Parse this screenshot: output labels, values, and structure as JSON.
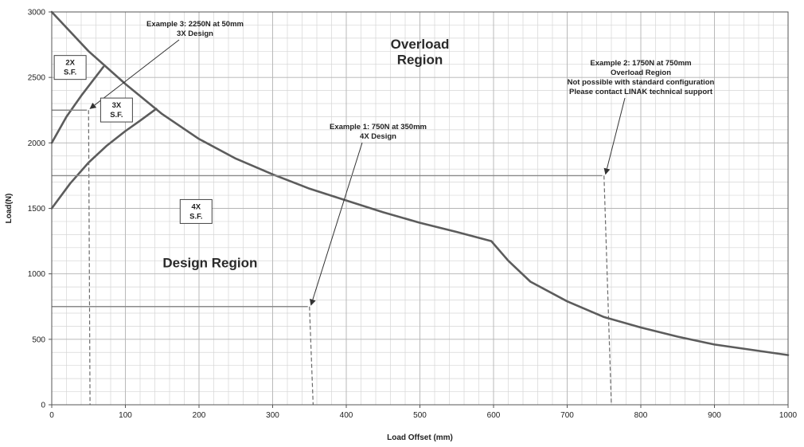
{
  "chart_data": {
    "type": "line",
    "title": "",
    "xlabel": "Load Offset (mm)",
    "ylabel": "Load(N)",
    "xlim": [
      0,
      1000
    ],
    "ylim": [
      0,
      3000
    ],
    "xticks": [
      0,
      100,
      200,
      300,
      400,
      500,
      600,
      700,
      800,
      900,
      1000
    ],
    "yticks": [
      0,
      500,
      1000,
      1500,
      2000,
      2500,
      3000
    ],
    "x_minor_step": 20,
    "y_minor_step": 100,
    "grid": true,
    "series": [
      {
        "role": "limit-curve",
        "x": [
          0,
          50,
          100,
          150,
          200,
          250,
          300,
          350,
          400,
          450,
          500,
          550,
          597,
          620,
          650,
          700,
          750,
          800,
          850,
          900,
          950,
          1000
        ],
        "y": [
          3000,
          2700,
          2450,
          2220,
          2030,
          1880,
          1760,
          1650,
          1560,
          1470,
          1390,
          1320,
          1250,
          1100,
          940,
          790,
          670,
          590,
          520,
          460,
          420,
          380
        ]
      },
      {
        "role": "2X S.F.",
        "x": [
          0,
          20,
          40,
          55,
          70
        ],
        "y": [
          2000,
          2200,
          2360,
          2470,
          2580
        ]
      },
      {
        "role": "3X / 4X S.F.",
        "x": [
          0,
          25,
          50,
          75,
          100,
          120,
          142
        ],
        "y": [
          1500,
          1690,
          1850,
          1980,
          2090,
          2170,
          2260
        ]
      }
    ],
    "examples": [
      {
        "load": 2250,
        "offset": 50,
        "label_lines": [
          "Example 3: 2250N at 50mm",
          "3X Design"
        ],
        "end_offset": 52
      },
      {
        "load": 750,
        "offset": 350,
        "label_lines": [
          "Example 1: 750N at 350mm",
          "4X Design"
        ],
        "end_offset": 355
      },
      {
        "load": 1750,
        "offset": 750,
        "label_lines": [
          "Example 2: 1750N at 750mm",
          "Overload Region",
          "Not possible with standard configuration",
          "Please contact LINAK technical support"
        ],
        "end_offset": 760
      }
    ],
    "annotations": [
      {
        "text": "Overload",
        "x": 500,
        "y": 2720,
        "class": "region"
      },
      {
        "text": "Region",
        "x": 500,
        "y": 2600,
        "class": "region"
      },
      {
        "text": "Design Region",
        "x": 215,
        "y": 1050,
        "class": "region"
      }
    ],
    "sf_boxes": [
      {
        "lines": [
          "2X",
          "S.F."
        ],
        "x": 25,
        "y": 2570
      },
      {
        "lines": [
          "3X",
          "S.F."
        ],
        "x": 88,
        "y": 2245
      },
      {
        "lines": [
          "4X",
          "S.F."
        ],
        "x": 196,
        "y": 1470
      }
    ]
  }
}
